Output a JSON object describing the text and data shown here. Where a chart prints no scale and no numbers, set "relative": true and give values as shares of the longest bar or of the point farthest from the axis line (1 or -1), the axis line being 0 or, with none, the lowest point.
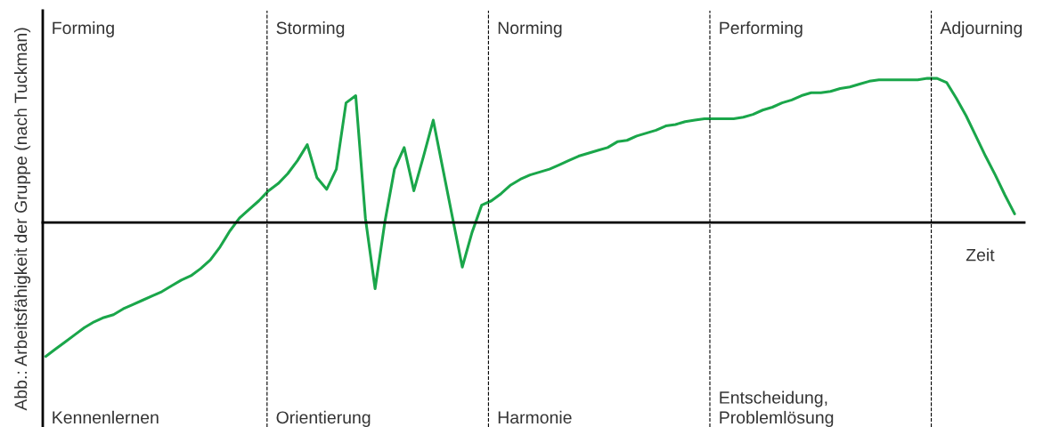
{
  "chart_data": {
    "type": "line",
    "relative": true,
    "xlabel": "Zeit",
    "ylabel": "Abb.: Arbeitsfähigkeit der Gruppe (nach Tuckman)",
    "categories": [
      null,
      null,
      null,
      null,
      null,
      null,
      null,
      null,
      null,
      null,
      null,
      null,
      null,
      null,
      null,
      null,
      null,
      null,
      null,
      null,
      null,
      null,
      null,
      null,
      null,
      null,
      null,
      null,
      null,
      null,
      null,
      null,
      null,
      null,
      null,
      null,
      null,
      null,
      null,
      null,
      null,
      null,
      null,
      null,
      null,
      null,
      null,
      null,
      null,
      null,
      null,
      null,
      null,
      null,
      null,
      null,
      null,
      null,
      null,
      null,
      null,
      null,
      null,
      null,
      null,
      null,
      null,
      null,
      null,
      null,
      null,
      null,
      null,
      null,
      null,
      null,
      null,
      null,
      null,
      null,
      null,
      null,
      null,
      null,
      null,
      null,
      null,
      null,
      null,
      null,
      null,
      null,
      null,
      null,
      null,
      null,
      null,
      null,
      null,
      null,
      null
    ],
    "series": [
      {
        "color": "#1aa64a",
        "values": [
          -0.93,
          -0.88,
          -0.83,
          -0.78,
          -0.73,
          -0.69,
          -0.66,
          -0.64,
          -0.6,
          -0.57,
          -0.54,
          -0.51,
          -0.48,
          -0.44,
          -0.4,
          -0.37,
          -0.32,
          -0.26,
          -0.17,
          -0.06,
          0.03,
          0.09,
          0.15,
          0.22,
          0.27,
          0.34,
          0.43,
          0.54,
          0.31,
          0.23,
          0.37,
          0.83,
          0.88,
          0.03,
          -0.46,
          0,
          0.37,
          0.52,
          0.22,
          0.46,
          0.71,
          0.37,
          0.03,
          -0.31,
          -0.07,
          0.12,
          0.15,
          0.2,
          0.26,
          0.3,
          0.33,
          0.35,
          0.37,
          0.4,
          0.43,
          0.46,
          0.48,
          0.5,
          0.52,
          0.56,
          0.57,
          0.6,
          0.62,
          0.64,
          0.67,
          0.68,
          0.7,
          0.71,
          0.72,
          0.72,
          0.72,
          0.72,
          0.73,
          0.75,
          0.78,
          0.8,
          0.83,
          0.85,
          0.88,
          0.9,
          0.9,
          0.91,
          0.93,
          0.94,
          0.96,
          0.98,
          0.99,
          0.99,
          0.99,
          0.99,
          0.99,
          1.0,
          1.0,
          0.97,
          0.86,
          0.74,
          0.6,
          0.46,
          0.33,
          0.19,
          0.06
        ]
      }
    ],
    "annotations": [
      "Forming",
      "Kennenlernen",
      "Storming",
      "Orientierung",
      "Norming",
      "Harmonie",
      "Performing",
      "Entscheidung,\nProblemlösung",
      "Adjourning"
    ]
  }
}
